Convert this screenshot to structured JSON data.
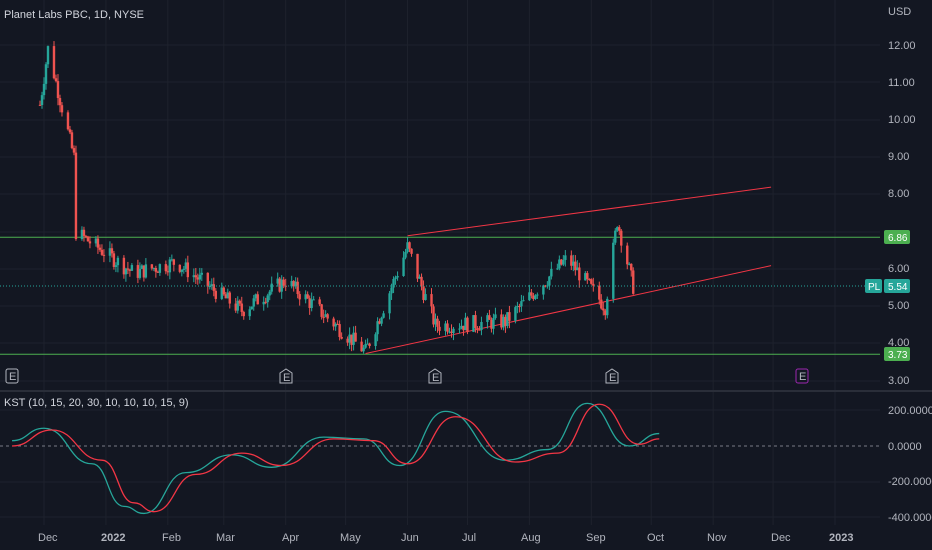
{
  "header": {
    "title": "Planet Labs PBC, 1D, NYSE"
  },
  "price_axis": {
    "currency": "USD",
    "ticks": [
      "12.00",
      "11.00",
      "10.00",
      "9.00",
      "8.00",
      "6.00",
      "5.00",
      "4.00",
      "3.00"
    ]
  },
  "badges": [
    {
      "text": "6.86",
      "value": 6.86,
      "color": "#4caf50"
    },
    {
      "text": "5.54",
      "value": 5.54,
      "color": "#26a69a"
    },
    {
      "text": "3.73",
      "value": 3.73,
      "color": "#4caf50"
    }
  ],
  "ticker_label": "PL",
  "earnings_marker": "E",
  "indicator": {
    "label": "KST (10, 15, 20, 30, 10, 10, 10, 15, 9)",
    "ticks": [
      "200.0000",
      "0.0000",
      "-200.0000",
      "-400.0000"
    ]
  },
  "time_axis": [
    "Dec",
    "2022",
    "Feb",
    "Mar",
    "Apr",
    "May",
    "Jun",
    "Jul",
    "Aug",
    "Sep",
    "Oct",
    "Nov",
    "Dec",
    "2023"
  ],
  "colors": {
    "up": "#26a69a",
    "down": "#ef5350",
    "level": "#4caf50",
    "channel": "#f23645",
    "kst": "#26a69a",
    "signal": "#f23645",
    "earnings_future": "#9c27b0"
  },
  "chart_data": [
    {
      "type": "candlestick",
      "title": "Planet Labs PBC, 1D, NYSE",
      "ylabel": "USD",
      "ylim": [
        3.0,
        12.3
      ],
      "x_ticks": [
        "Dec",
        "2022",
        "Feb",
        "Mar",
        "Apr",
        "May",
        "Jun",
        "Jul",
        "Aug",
        "Sep",
        "Oct",
        "Nov",
        "Dec",
        "2023"
      ],
      "last_price": 5.54,
      "horizontal_levels": [
        6.86,
        3.73
      ],
      "key_points": [
        {
          "x": "2021-11-29",
          "close": 10.4
        },
        {
          "x": "2021-12-03",
          "close": 11.9
        },
        {
          "x": "2021-12-16",
          "close": 9.0
        },
        {
          "x": "2021-12-17",
          "close": 7.0
        },
        {
          "x": "2022-01-15",
          "close": 5.9
        },
        {
          "x": "2022-02-05",
          "close": 6.2
        },
        {
          "x": "2022-03-10",
          "close": 4.9
        },
        {
          "x": "2022-04-01",
          "close": 5.7
        },
        {
          "x": "2022-05-11",
          "close": 3.8
        },
        {
          "x": "2022-06-01",
          "close": 6.6
        },
        {
          "x": "2022-06-15",
          "close": 4.5
        },
        {
          "x": "2022-07-20",
          "close": 4.6
        },
        {
          "x": "2022-08-20",
          "close": 6.3
        },
        {
          "x": "2022-09-08",
          "close": 5.0
        },
        {
          "x": "2022-09-14",
          "close": 7.3
        },
        {
          "x": "2022-09-22",
          "close": 5.54
        }
      ],
      "trendlines": [
        {
          "from": {
            "x": "2022-06-01",
            "y": 6.9
          },
          "to": {
            "x": "2022-11-30",
            "y": 8.2
          }
        },
        {
          "from": {
            "x": "2022-05-11",
            "y": 3.75
          },
          "to": {
            "x": "2022-11-30",
            "y": 6.1
          }
        }
      ]
    },
    {
      "type": "line",
      "title": "KST (10, 15, 20, 30, 10, 10, 10, 15, 9)",
      "ylim": [
        -420,
        240
      ],
      "series": [
        {
          "color": "#26a69a",
          "points": [
            {
              "x": "2021-11-15",
              "y": 30
            },
            {
              "x": "2021-12-01",
              "y": 100
            },
            {
              "x": "2021-12-25",
              "y": -100
            },
            {
              "x": "2022-01-10",
              "y": -340
            },
            {
              "x": "2022-01-20",
              "y": -380
            },
            {
              "x": "2022-02-10",
              "y": -150
            },
            {
              "x": "2022-03-05",
              "y": -50
            },
            {
              "x": "2022-03-25",
              "y": -120
            },
            {
              "x": "2022-04-20",
              "y": 50
            },
            {
              "x": "2022-05-10",
              "y": 40
            },
            {
              "x": "2022-05-28",
              "y": -110
            },
            {
              "x": "2022-06-20",
              "y": 195
            },
            {
              "x": "2022-07-20",
              "y": -80
            },
            {
              "x": "2022-08-10",
              "y": -20
            },
            {
              "x": "2022-08-30",
              "y": 240
            },
            {
              "x": "2022-09-20",
              "y": 0
            },
            {
              "x": "2022-10-05",
              "y": 70
            }
          ]
        },
        {
          "color": "#f23645",
          "points": [
            {
              "x": "2021-11-15",
              "y": 0
            },
            {
              "x": "2021-12-05",
              "y": 90
            },
            {
              "x": "2021-12-30",
              "y": -80
            },
            {
              "x": "2022-01-15",
              "y": -320
            },
            {
              "x": "2022-01-25",
              "y": -370
            },
            {
              "x": "2022-02-15",
              "y": -160
            },
            {
              "x": "2022-03-10",
              "y": -40
            },
            {
              "x": "2022-03-30",
              "y": -110
            },
            {
              "x": "2022-04-25",
              "y": 40
            },
            {
              "x": "2022-05-15",
              "y": 30
            },
            {
              "x": "2022-06-01",
              "y": -100
            },
            {
              "x": "2022-06-25",
              "y": 165
            },
            {
              "x": "2022-07-25",
              "y": -90
            },
            {
              "x": "2022-08-15",
              "y": -40
            },
            {
              "x": "2022-09-05",
              "y": 235
            },
            {
              "x": "2022-09-25",
              "y": 10
            },
            {
              "x": "2022-10-05",
              "y": 40
            }
          ]
        }
      ]
    }
  ]
}
